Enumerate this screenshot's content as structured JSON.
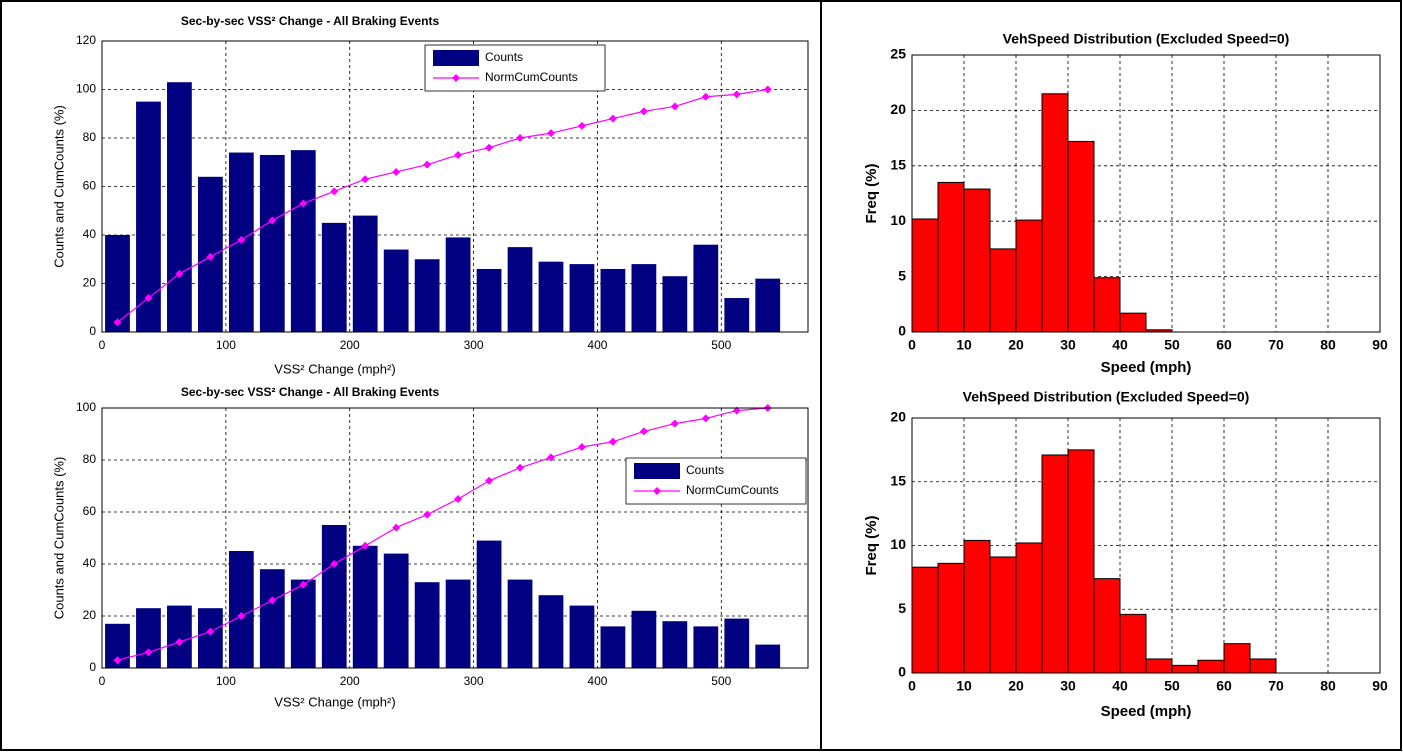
{
  "chart_data": [
    {
      "type": "bar",
      "title": "Sec-by-sec VSS² Change - All Braking Events",
      "xlabel": "VSS² Change  (mph²)",
      "ylabel": "Counts and CumCounts (%)",
      "x": [
        12.5,
        37.5,
        62.5,
        87.5,
        112.5,
        137.5,
        162.5,
        187.5,
        212.5,
        237.5,
        262.5,
        287.5,
        312.5,
        337.5,
        362.5,
        387.5,
        412.5,
        437.5,
        462.5,
        487.5,
        512.5,
        537.5
      ],
      "series": [
        {
          "name": "Counts",
          "type": "bar",
          "color": "#000080",
          "values": [
            40,
            95,
            103,
            64,
            74,
            73,
            75,
            45,
            48,
            34,
            30,
            39,
            26,
            35,
            29,
            28,
            26,
            28,
            23,
            36,
            14,
            22
          ]
        },
        {
          "name": "NormCumCounts",
          "type": "line",
          "color": "#ff00ff",
          "values": [
            4,
            14,
            24,
            31,
            38,
            46,
            53,
            58,
            63,
            66,
            69,
            73,
            76,
            80,
            82,
            85,
            88,
            91,
            93,
            97,
            98,
            100
          ]
        }
      ],
      "xlim": [
        0,
        570
      ],
      "xticks": [
        0,
        100,
        200,
        300,
        400,
        500
      ],
      "ylim": [
        0,
        120
      ],
      "yticks": [
        0,
        20,
        40,
        60,
        80,
        100,
        120
      ],
      "grid": true,
      "legend": "north"
    },
    {
      "type": "bar",
      "title": "Sec-by-sec VSS² Change - All Braking Events",
      "xlabel": "VSS² Change  (mph²)",
      "ylabel": "Counts and CumCounts (%)",
      "x": [
        12.5,
        37.5,
        62.5,
        87.5,
        112.5,
        137.5,
        162.5,
        187.5,
        212.5,
        237.5,
        262.5,
        287.5,
        312.5,
        337.5,
        362.5,
        387.5,
        412.5,
        437.5,
        462.5,
        487.5,
        512.5,
        537.5
      ],
      "series": [
        {
          "name": "Counts",
          "type": "bar",
          "color": "#000080",
          "values": [
            17,
            23,
            24,
            23,
            45,
            38,
            34,
            55,
            47,
            44,
            33,
            34,
            49,
            34,
            28,
            24,
            16,
            22,
            18,
            16,
            19,
            9
          ]
        },
        {
          "name": "NormCumCounts",
          "type": "line",
          "color": "#ff00ff",
          "values": [
            3,
            6,
            10,
            14,
            20,
            26,
            32,
            40,
            47,
            54,
            59,
            65,
            72,
            77,
            81,
            85,
            87,
            91,
            94,
            96,
            99,
            100
          ]
        }
      ],
      "xlim": [
        0,
        570
      ],
      "xticks": [
        0,
        100,
        200,
        300,
        400,
        500
      ],
      "ylim": [
        0,
        100
      ],
      "yticks": [
        0,
        20,
        40,
        60,
        80,
        100
      ],
      "grid": true,
      "legend": "east"
    },
    {
      "type": "histogram",
      "title": "VehSpeed Distribution (Excluded Speed=0)",
      "xlabel": "Speed (mph)",
      "ylabel": "Freq (%)",
      "color": "#ff0000",
      "bins": [
        0,
        5,
        10,
        15,
        20,
        25,
        30,
        35,
        40,
        45,
        50
      ],
      "values": [
        10.2,
        13.5,
        12.9,
        7.5,
        10.1,
        21.5,
        17.2,
        4.9,
        1.7,
        0.2
      ],
      "xlim": [
        0,
        90
      ],
      "xticks": [
        0,
        10,
        20,
        30,
        40,
        50,
        60,
        70,
        80,
        90
      ],
      "ylim": [
        0,
        25
      ],
      "yticks": [
        0,
        5,
        10,
        15,
        20,
        25
      ],
      "grid": true
    },
    {
      "type": "histogram",
      "title": "VehSpeed Distribution (Excluded Speed=0)",
      "xlabel": "Speed (mph)",
      "ylabel": "Freq (%)",
      "color": "#ff0000",
      "bins": [
        0,
        5,
        10,
        15,
        20,
        25,
        30,
        35,
        40,
        45,
        50,
        55,
        60,
        65,
        70
      ],
      "values": [
        8.3,
        8.6,
        10.4,
        9.1,
        10.2,
        17.1,
        17.5,
        7.4,
        4.6,
        1.1,
        0.6,
        1.0,
        2.3,
        1.1
      ],
      "xlim": [
        0,
        90
      ],
      "xticks": [
        0,
        10,
        20,
        30,
        40,
        50,
        60,
        70,
        80,
        90
      ],
      "ylim": [
        0,
        20
      ],
      "yticks": [
        0,
        5,
        10,
        15,
        20
      ],
      "grid": true
    }
  ]
}
